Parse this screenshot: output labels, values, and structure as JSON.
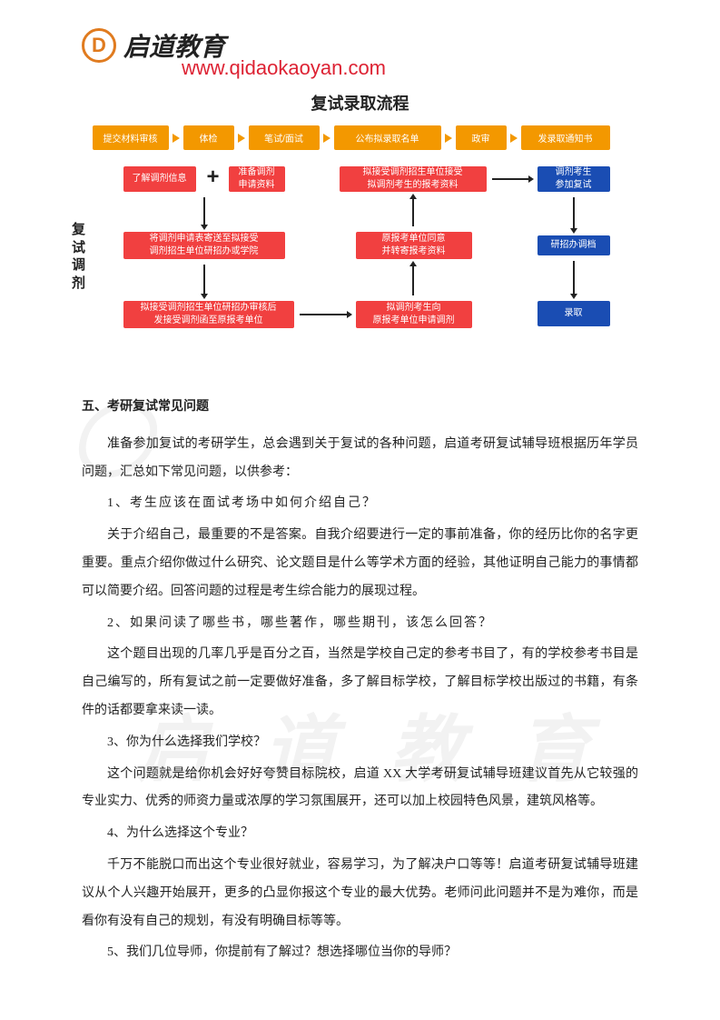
{
  "header": {
    "logo_letter": "D",
    "brand": "启道教育",
    "url": "www.qidaokaoyan.com"
  },
  "flowchart": {
    "title": "复试录取流程",
    "top_steps": [
      "提交材料审核",
      "体检",
      "笔试/面试",
      "公布拟录取名单",
      "政审",
      "发录取通知书"
    ],
    "side_label": "复试调剂",
    "plus": "+",
    "boxes": {
      "r1a": "了解调剂信息",
      "r1b": "准备调剂\n申请资料",
      "r2": "将调剂申请表寄送至拟接受\n调剂招生单位研招办或学院",
      "r3": "拟接受调剂招生单位研招办审核后\n发接受调剂函至原报考单位",
      "r4": "拟调剂考生向\n原报考单位申请调剂",
      "r5": "原报考单位同意\n并转寄报考资料",
      "r6": "拟接受调剂招生单位接受\n拟调剂考生的报考资料",
      "b1": "调剂考生\n参加复试",
      "b2": "研招办调档",
      "b3": "录取"
    },
    "colors": {
      "orange": "#f39800",
      "red": "#f14040",
      "blue": "#1a4db3",
      "text": "#ffffff"
    }
  },
  "body": {
    "section_title": "五、考研复试常见问题",
    "intro": "准备参加复试的考研学生，总会遇到关于复试的各种问题，启道考研复试辅导班根据历年学员问题，汇总如下常见问题，以供参考：",
    "q1": "1、考生应该在面试考场中如何介绍自己？",
    "a1": "关于介绍自己，最重要的不是答案。自我介绍要进行一定的事前准备，你的经历比你的名字更重要。重点介绍你做过什么研究、论文题目是什么等学术方面的经验，其他证明自己能力的事情都可以简要介绍。回答问题的过程是考生综合能力的展现过程。",
    "q2": "2、如果问读了哪些书，哪些著作，哪些期刊，该怎么回答？",
    "a2": "这个题目出现的几率几乎是百分之百，当然是学校自己定的参考书目了，有的学校参考书目是自己编写的，所有复试之前一定要做好准备，多了解目标学校，了解目标学校出版过的书籍，有条件的话都要拿来读一读。",
    "q3": "3、你为什么选择我们学校？",
    "a3": "这个问题就是给你机会好好夸赞目标院校，启道 XX 大学考研复试辅导班建议首先从它较强的专业实力、优秀的师资力量或浓厚的学习氛围展开，还可以加上校园特色风景，建筑风格等。",
    "q4": "4、为什么选择这个专业？",
    "a4": "千万不能脱口而出这个专业很好就业，容易学习，为了解决户口等等！启道考研复试辅导班建议从个人兴趣开始展开，更多的凸显你报这个专业的最大优势。老师问此问题并不是为难你，而是看你有没有自己的规划，有没有明确目标等等。",
    "q5": "5、我们几位导师，你提前有了解过？想选择哪位当你的导师？"
  }
}
